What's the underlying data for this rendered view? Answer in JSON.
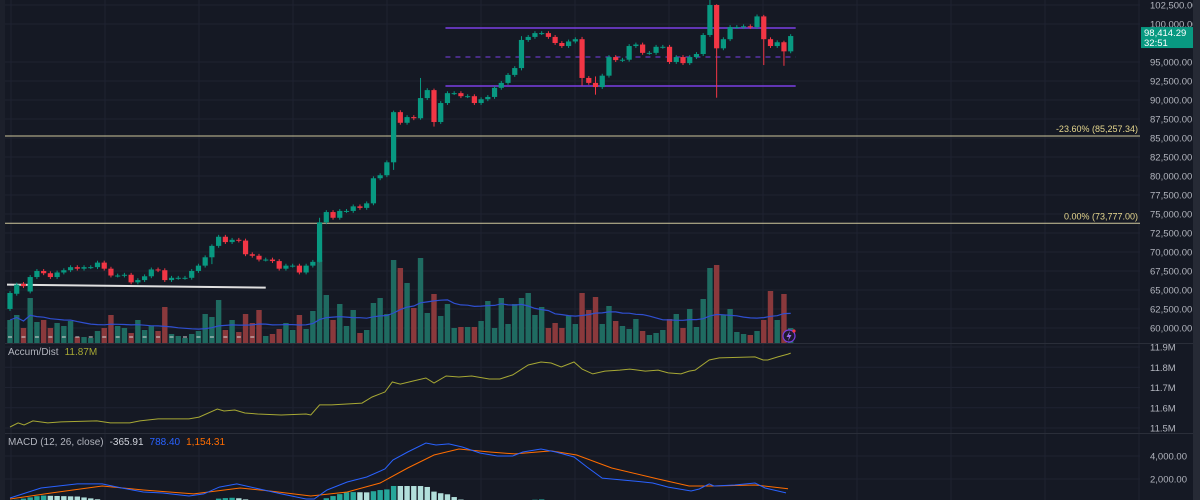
{
  "chart_data": {
    "type": "candlestick",
    "price_axis": {
      "ticks": [
        "102,500.00",
        "100,000.00",
        "95,000.00",
        "92,500.00",
        "90,000.00",
        "87,500.00",
        "85,000.00",
        "82,500.00",
        "80,000.00",
        "77,500.00",
        "75,000.00",
        "72,500.00",
        "70,000.00",
        "67,500.00",
        "65,000.00",
        "62,500.00",
        "60,000.00"
      ],
      "tick_values": [
        102500,
        100000,
        95000,
        92500,
        90000,
        87500,
        85000,
        82500,
        80000,
        77500,
        75000,
        72500,
        70000,
        67500,
        65000,
        62500,
        60000
      ]
    },
    "last_price": {
      "label": "98,414.29",
      "countdown": "32:51",
      "value": 98414.29,
      "color": "#089981"
    },
    "candles_oc": [
      [
        62500,
        64600
      ],
      [
        64500,
        65700
      ],
      [
        65800,
        65500
      ],
      [
        64800,
        66700
      ],
      [
        66700,
        67500
      ],
      [
        67500,
        67200
      ],
      [
        67200,
        66700
      ],
      [
        66700,
        67300
      ],
      [
        67300,
        67600
      ],
      [
        67600,
        68000
      ],
      [
        68000,
        67800
      ],
      [
        67800,
        68000
      ],
      [
        68000,
        68000
      ],
      [
        68000,
        68600
      ],
      [
        68600,
        67800
      ],
      [
        67800,
        66900
      ],
      [
        66900,
        66900
      ],
      [
        66900,
        67000
      ],
      [
        67000,
        66000
      ],
      [
        66000,
        66300
      ],
      [
        66300,
        66800
      ],
      [
        66800,
        67700
      ],
      [
        67700,
        67600
      ],
      [
        67600,
        66300
      ],
      [
        66300,
        66600
      ],
      [
        66600,
        66600
      ],
      [
        66600,
        66600
      ],
      [
        66600,
        67500
      ],
      [
        67500,
        68200
      ],
      [
        68200,
        69300
      ],
      [
        69300,
        70800
      ],
      [
        70800,
        72000
      ],
      [
        72000,
        71300
      ],
      [
        71300,
        71600
      ],
      [
        71600,
        71500
      ],
      [
        71500,
        69700
      ],
      [
        69700,
        69500
      ],
      [
        69500,
        69000
      ],
      [
        69000,
        69000
      ],
      [
        69000,
        68800
      ],
      [
        68800,
        67800
      ],
      [
        67800,
        68200
      ],
      [
        68200,
        68200
      ],
      [
        68200,
        67300
      ],
      [
        67300,
        68200
      ],
      [
        68200,
        68700
      ],
      [
        68700,
        73900
      ],
      [
        73900,
        75250
      ],
      [
        75250,
        74500
      ],
      [
        74500,
        75400
      ],
      [
        75400,
        75400
      ],
      [
        75400,
        76000
      ],
      [
        76000,
        75800
      ],
      [
        75800,
        76400
      ],
      [
        76400,
        79700
      ],
      [
        79700,
        80100
      ],
      [
        80100,
        81800
      ],
      [
        81800,
        88400
      ],
      [
        88400,
        87000
      ],
      [
        87000,
        87750
      ],
      [
        87750,
        87600
      ],
      [
        87600,
        90250
      ],
      [
        90250,
        91300
      ],
      [
        91300,
        87100
      ],
      [
        87100,
        89600
      ],
      [
        89600,
        90900
      ],
      [
        90900,
        90900
      ],
      [
        90900,
        90500
      ],
      [
        90500,
        90500
      ],
      [
        90500,
        89600
      ],
      [
        89600,
        90100
      ],
      [
        90100,
        90400
      ],
      [
        90400,
        91600
      ],
      [
        91600,
        92250
      ],
      [
        92250,
        93300
      ],
      [
        93300,
        94200
      ],
      [
        94200,
        97900
      ],
      [
        97900,
        98300
      ],
      [
        98300,
        98800
      ],
      [
        98800,
        98800
      ],
      [
        98800,
        98300
      ],
      [
        98300,
        97500
      ],
      [
        97500,
        97100
      ],
      [
        97100,
        97700
      ],
      [
        97700,
        98000
      ],
      [
        98000,
        92900
      ],
      [
        92900,
        92250
      ],
      [
        92250,
        91700
      ],
      [
        91700,
        93200
      ],
      [
        93200,
        95650
      ],
      [
        95650,
        95250
      ],
      [
        95250,
        95300
      ],
      [
        95300,
        97100
      ],
      [
        97100,
        97300
      ],
      [
        97300,
        96200
      ],
      [
        96200,
        96200
      ],
      [
        96200,
        97000
      ],
      [
        97000,
        97000
      ],
      [
        97000,
        95000
      ],
      [
        95000,
        95650
      ],
      [
        95650,
        94850
      ],
      [
        94850,
        95650
      ],
      [
        95650,
        96050
      ],
      [
        96050,
        98550
      ],
      [
        98550,
        102500
      ],
      [
        102500,
        96800
      ],
      [
        96800,
        98000
      ],
      [
        98000,
        99600
      ],
      [
        99600,
        99600
      ],
      [
        99600,
        99700
      ],
      [
        99700,
        99600
      ],
      [
        99600,
        101000
      ],
      [
        101000,
        98000
      ],
      [
        98000,
        97100
      ],
      [
        97100,
        97600
      ],
      [
        97600,
        96400
      ],
      [
        96400,
        98414.29
      ]
    ],
    "wick_overrides": {
      "30": [
        71000,
        68400
      ],
      "46": [
        74500,
        68600
      ],
      "57": [
        88600,
        80800
      ],
      "61": [
        92900,
        87400
      ],
      "63": [
        91500,
        86500
      ],
      "76": [
        98400,
        93900
      ],
      "85": [
        98300,
        91900
      ],
      "87": [
        93100,
        90700
      ],
      "104": [
        104000,
        98300
      ],
      "105": [
        102600,
        90300
      ],
      "112": [
        101200,
        94600
      ],
      "115": [
        97800,
        94500
      ]
    },
    "volume_relative": [
      23,
      28,
      15,
      45,
      21,
      23,
      15,
      20,
      17,
      22,
      6,
      6,
      5,
      12,
      15,
      28,
      17,
      15,
      10,
      23,
      13,
      17,
      12,
      36,
      9,
      7,
      5,
      9,
      12,
      29,
      26,
      43,
      13,
      23,
      11,
      29,
      20,
      33,
      7,
      9,
      14,
      20,
      13,
      28,
      14,
      32,
      83,
      48,
      23,
      39,
      17,
      33,
      10,
      13,
      40,
      45,
      29,
      83,
      75,
      60,
      35,
      85,
      30,
      49,
      27,
      39,
      15,
      16,
      16,
      16,
      22,
      42,
      15,
      45,
      19,
      39,
      45,
      50,
      28,
      36,
      15,
      20,
      15,
      27,
      19,
      50,
      33,
      46,
      19,
      37,
      22,
      17,
      14,
      24,
      12,
      8,
      10,
      13,
      24,
      29,
      15,
      34,
      16,
      44,
      75,
      78,
      28,
      34,
      11,
      9,
      8,
      12,
      23,
      52,
      23,
      49,
      15
    ],
    "volume_ma_period": 20,
    "colors": {
      "up": "#089981",
      "down": "#f23645",
      "vol_up": "#1f6b61",
      "vol_down": "#8a393c",
      "vol_ma": "#2f4fd0",
      "range": "#7b3fe4",
      "fib": "#cfc89c",
      "trend": "#e0e0e0"
    },
    "range_box": {
      "top": 99470,
      "mid": 95650,
      "bottom": 91840,
      "start_index": 65
    },
    "fib_levels": [
      {
        "label": "-23.60% (85,257.34)",
        "value": 85257.34
      },
      {
        "label": "0.00% (73,777.00)",
        "value": 73777.0
      }
    ],
    "trendline": {
      "from": [
        0,
        65700
      ],
      "to": [
        38,
        65300
      ]
    },
    "accum_dist": {
      "title": "Accum/Dist",
      "value_label": "11.87M",
      "color": "#a7a834",
      "axis_ticks": [
        "11.9M",
        "11.8M",
        "11.7M",
        "11.6M",
        "11.5M"
      ],
      "axis_values": [
        11.9,
        11.8,
        11.7,
        11.6,
        11.5
      ],
      "points": [
        [
          0,
          11.505
        ],
        [
          1.2,
          11.525
        ],
        [
          2.1,
          11.515
        ],
        [
          3.4,
          11.535
        ],
        [
          5.6,
          11.525
        ],
        [
          7.6,
          11.53
        ],
        [
          12.9,
          11.535
        ],
        [
          14.9,
          11.525
        ],
        [
          17.8,
          11.525
        ],
        [
          19.3,
          11.535
        ],
        [
          22,
          11.545
        ],
        [
          26.6,
          11.545
        ],
        [
          28.1,
          11.554
        ],
        [
          30.8,
          11.594
        ],
        [
          31.8,
          11.584
        ],
        [
          33.4,
          11.589
        ],
        [
          34.9,
          11.574
        ],
        [
          36.8,
          11.569
        ],
        [
          40.3,
          11.564
        ],
        [
          44,
          11.569
        ],
        [
          44.7,
          11.564
        ],
        [
          46,
          11.614
        ],
        [
          47.8,
          11.614
        ],
        [
          52.3,
          11.623
        ],
        [
          53.8,
          11.653
        ],
        [
          55.7,
          11.678
        ],
        [
          56.8,
          11.727
        ],
        [
          58,
          11.717
        ],
        [
          59.9,
          11.732
        ],
        [
          61.8,
          11.747
        ],
        [
          63,
          11.722
        ],
        [
          64.8,
          11.757
        ],
        [
          66.7,
          11.752
        ],
        [
          68.6,
          11.757
        ],
        [
          71.2,
          11.742
        ],
        [
          72.8,
          11.742
        ],
        [
          74.7,
          11.762
        ],
        [
          77,
          11.811
        ],
        [
          78.9,
          11.826
        ],
        [
          80.4,
          11.821
        ],
        [
          81.9,
          11.801
        ],
        [
          83.8,
          11.826
        ],
        [
          85,
          11.791
        ],
        [
          86.6,
          11.767
        ],
        [
          88.4,
          11.781
        ],
        [
          90.6,
          11.786
        ],
        [
          92.1,
          11.791
        ],
        [
          94.4,
          11.781
        ],
        [
          96.3,
          11.786
        ],
        [
          97.8,
          11.772
        ],
        [
          99.7,
          11.767
        ],
        [
          100.9,
          11.781
        ],
        [
          101.8,
          11.786
        ],
        [
          103.9,
          11.836
        ],
        [
          105.4,
          11.846
        ],
        [
          110.7,
          11.851
        ],
        [
          111.9,
          11.836
        ],
        [
          112.6,
          11.836
        ],
        [
          114.1,
          11.851
        ],
        [
          115.6,
          11.865
        ],
        [
          116,
          11.87
        ]
      ]
    },
    "macd": {
      "title": "MACD (12, 26, close)",
      "histogram_label": "-365.91",
      "macd_label": "788.40",
      "signal_label": "1,154.31",
      "colors": {
        "macd": "#2962ff",
        "signal": "#ff6d00",
        "hist_up": "#26a69a",
        "hist_fade": "#b2dfdb",
        "label": "#d1d4dc"
      },
      "axis_ticks": [
        "4,000.00",
        "2,000.00"
      ],
      "axis_values": [
        4000,
        2000
      ],
      "macd_points": [
        [
          0,
          350
        ],
        [
          4.6,
          1220
        ],
        [
          10,
          1570
        ],
        [
          13.7,
          1570
        ],
        [
          16.6,
          1220
        ],
        [
          19.8,
          870
        ],
        [
          22.7,
          780
        ],
        [
          26.6,
          520
        ],
        [
          28.8,
          700
        ],
        [
          31.1,
          1300
        ],
        [
          33.7,
          1570
        ],
        [
          36.4,
          1220
        ],
        [
          40.3,
          700
        ],
        [
          44,
          260
        ],
        [
          45.2,
          260
        ],
        [
          47.1,
          1040
        ],
        [
          50.1,
          1740
        ],
        [
          53,
          2170
        ],
        [
          55.7,
          2870
        ],
        [
          56.9,
          3650
        ],
        [
          59.1,
          4350
        ],
        [
          61.8,
          5130
        ],
        [
          63.3,
          4960
        ],
        [
          65.2,
          5050
        ],
        [
          67.2,
          4780
        ],
        [
          69.8,
          4260
        ],
        [
          72.4,
          4000
        ],
        [
          74.7,
          4000
        ],
        [
          76.2,
          4350
        ],
        [
          78.9,
          4610
        ],
        [
          81.1,
          4350
        ],
        [
          83.8,
          3910
        ],
        [
          85.7,
          3050
        ],
        [
          88,
          2080
        ],
        [
          92.6,
          1830
        ],
        [
          95.5,
          1650
        ],
        [
          97.8,
          1300
        ],
        [
          101.2,
          960
        ],
        [
          102.4,
          1130
        ],
        [
          103.9,
          1570
        ],
        [
          104.6,
          1390
        ],
        [
          107.7,
          1480
        ],
        [
          110.7,
          1650
        ],
        [
          112.2,
          1220
        ],
        [
          115.3,
          788.4
        ]
      ],
      "signal_points": [
        [
          0,
          260
        ],
        [
          6.1,
          780
        ],
        [
          13.7,
          1390
        ],
        [
          19.8,
          1040
        ],
        [
          27.3,
          700
        ],
        [
          34.2,
          1220
        ],
        [
          38.6,
          960
        ],
        [
          44.7,
          520
        ],
        [
          50.1,
          870
        ],
        [
          55,
          1650
        ],
        [
          59.1,
          2960
        ],
        [
          63,
          4090
        ],
        [
          66.7,
          4610
        ],
        [
          71.3,
          4350
        ],
        [
          75,
          4180
        ],
        [
          80.4,
          4440
        ],
        [
          84.2,
          4090
        ],
        [
          89.4,
          2960
        ],
        [
          96.3,
          2000
        ],
        [
          100.9,
          1390
        ],
        [
          104.6,
          1390
        ],
        [
          110.7,
          1480
        ],
        [
          115.6,
          1154.31
        ]
      ]
    }
  }
}
